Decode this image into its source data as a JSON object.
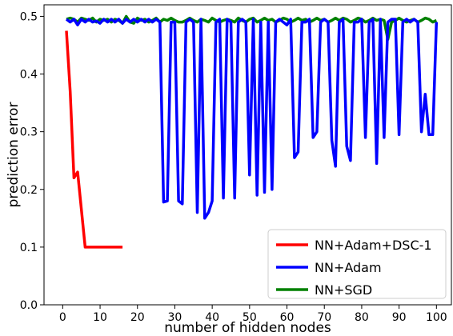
{
  "chart_data": {
    "type": "line",
    "title": "",
    "xlabel": "number of hidden nodes",
    "ylabel": "prediction error",
    "xlim": [
      -5,
      104
    ],
    "ylim": [
      0,
      0.52
    ],
    "xticks": [
      0,
      10,
      20,
      30,
      40,
      50,
      60,
      70,
      80,
      90,
      100
    ],
    "yticks": [
      0.0,
      0.1,
      0.2,
      0.3,
      0.4,
      0.5
    ],
    "ytick_labels": [
      "0.0",
      "0.1",
      "0.2",
      "0.3",
      "0.4",
      "0.5"
    ],
    "grid": false,
    "legend_position": "lower-right",
    "series": [
      {
        "name": "NN+Adam+DSC-1",
        "color": "#ff0000",
        "x": [
          1,
          2,
          3,
          4,
          5,
          6,
          7,
          8,
          9,
          10,
          11,
          12,
          13,
          14,
          15,
          16
        ],
        "y": [
          0.475,
          0.37,
          0.22,
          0.23,
          0.165,
          0.1,
          0.1,
          0.1,
          0.1,
          0.1,
          0.1,
          0.1,
          0.1,
          0.1,
          0.1,
          0.1
        ]
      },
      {
        "name": "NN+Adam",
        "color": "#0000ff",
        "x": [
          1,
          2,
          3,
          4,
          5,
          6,
          7,
          8,
          9,
          10,
          11,
          12,
          13,
          14,
          15,
          16,
          17,
          18,
          19,
          20,
          21,
          22,
          23,
          24,
          25,
          26,
          27,
          28,
          29,
          30,
          31,
          32,
          33,
          34,
          35,
          36,
          37,
          38,
          39,
          40,
          41,
          42,
          43,
          44,
          45,
          46,
          47,
          48,
          49,
          50,
          51,
          52,
          53,
          54,
          55,
          56,
          57,
          58,
          59,
          60,
          61,
          62,
          63,
          64,
          65,
          66,
          67,
          68,
          69,
          70,
          71,
          72,
          73,
          74,
          75,
          76,
          77,
          78,
          79,
          80,
          81,
          82,
          83,
          84,
          85,
          86,
          87,
          88,
          89,
          90,
          91,
          92,
          93,
          94,
          95,
          96,
          97,
          98,
          99,
          100
        ],
        "y": [
          0.495,
          0.49,
          0.495,
          0.485,
          0.495,
          0.49,
          0.495,
          0.49,
          0.492,
          0.488,
          0.495,
          0.49,
          0.495,
          0.49,
          0.495,
          0.488,
          0.495,
          0.49,
          0.495,
          0.49,
          0.495,
          0.49,
          0.495,
          0.49,
          0.495,
          0.49,
          0.178,
          0.18,
          0.49,
          0.49,
          0.18,
          0.175,
          0.49,
          0.495,
          0.49,
          0.16,
          0.495,
          0.15,
          0.16,
          0.18,
          0.49,
          0.495,
          0.185,
          0.495,
          0.49,
          0.185,
          0.49,
          0.495,
          0.49,
          0.225,
          0.495,
          0.19,
          0.49,
          0.195,
          0.49,
          0.2,
          0.49,
          0.495,
          0.49,
          0.485,
          0.495,
          0.255,
          0.265,
          0.49,
          0.49,
          0.495,
          0.29,
          0.3,
          0.49,
          0.495,
          0.49,
          0.285,
          0.24,
          0.49,
          0.495,
          0.275,
          0.25,
          0.49,
          0.49,
          0.495,
          0.29,
          0.49,
          0.495,
          0.245,
          0.495,
          0.29,
          0.49,
          0.495,
          0.495,
          0.295,
          0.49,
          0.495,
          0.49,
          0.495,
          0.49,
          0.3,
          0.365,
          0.295,
          0.295,
          0.49
        ]
      },
      {
        "name": "NN+SGD",
        "color": "#008000",
        "x": [
          1,
          2,
          3,
          4,
          5,
          6,
          7,
          8,
          9,
          10,
          11,
          12,
          13,
          14,
          15,
          16,
          17,
          18,
          19,
          20,
          21,
          22,
          23,
          24,
          25,
          26,
          27,
          28,
          29,
          30,
          31,
          32,
          33,
          34,
          35,
          36,
          37,
          38,
          39,
          40,
          41,
          42,
          43,
          44,
          45,
          46,
          47,
          48,
          49,
          50,
          51,
          52,
          53,
          54,
          55,
          56,
          57,
          58,
          59,
          60,
          61,
          62,
          63,
          64,
          65,
          66,
          67,
          68,
          69,
          70,
          71,
          72,
          73,
          74,
          75,
          76,
          77,
          78,
          79,
          80,
          81,
          82,
          83,
          84,
          85,
          86,
          87,
          88,
          89,
          90,
          91,
          92,
          93,
          94,
          95,
          96,
          97,
          98,
          99,
          100
        ],
        "y": [
          0.495,
          0.497,
          0.495,
          0.49,
          0.497,
          0.495,
          0.493,
          0.497,
          0.49,
          0.495,
          0.493,
          0.495,
          0.49,
          0.495,
          0.493,
          0.488,
          0.5,
          0.49,
          0.488,
          0.497,
          0.493,
          0.495,
          0.49,
          0.493,
          0.497,
          0.49,
          0.495,
          0.493,
          0.497,
          0.493,
          0.49,
          0.49,
          0.493,
          0.497,
          0.493,
          0.49,
          0.495,
          0.493,
          0.49,
          0.497,
          0.493,
          0.49,
          0.493,
          0.495,
          0.493,
          0.49,
          0.497,
          0.493,
          0.49,
          0.495,
          0.497,
          0.49,
          0.493,
          0.497,
          0.493,
          0.495,
          0.49,
          0.493,
          0.497,
          0.495,
          0.49,
          0.493,
          0.497,
          0.493,
          0.495,
          0.49,
          0.493,
          0.497,
          0.493,
          0.495,
          0.49,
          0.493,
          0.497,
          0.493,
          0.497,
          0.495,
          0.49,
          0.493,
          0.497,
          0.495,
          0.49,
          0.493,
          0.497,
          0.493,
          0.495,
          0.493,
          0.46,
          0.49,
          0.493,
          0.497,
          0.493,
          0.49,
          0.493,
          0.495,
          0.49,
          0.493,
          0.497,
          0.495,
          0.49,
          0.493
        ]
      }
    ]
  }
}
